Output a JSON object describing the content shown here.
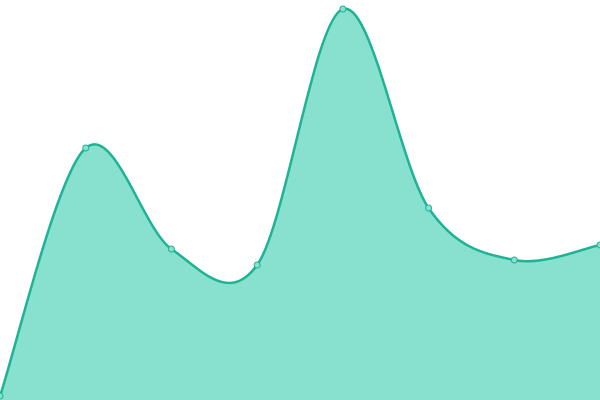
{
  "chart_data": {
    "type": "area",
    "categories": [
      null,
      null,
      null,
      null,
      null,
      null,
      null,
      null
    ],
    "values": [
      4,
      252,
      151,
      135,
      391,
      192,
      140,
      155
    ],
    "ylim": [
      0,
      400
    ],
    "color": "#1db394",
    "fill": "#88e0cf",
    "smooth": true,
    "markers": true
  }
}
